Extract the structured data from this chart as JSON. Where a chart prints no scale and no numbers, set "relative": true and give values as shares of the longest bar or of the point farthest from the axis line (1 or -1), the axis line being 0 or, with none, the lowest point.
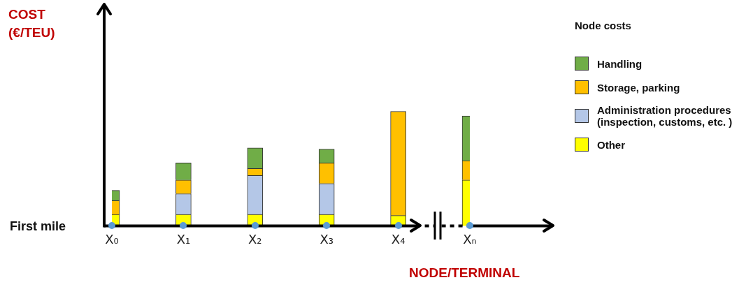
{
  "chart_data": {
    "type": "bar",
    "stacked": true,
    "relative": true,
    "xlabel": "NODE/TERMINAL",
    "legend_title": "Node costs",
    "legend": "right",
    "grid": false,
    "annotations": [
      "COST (€/TEU)",
      "First mile"
    ],
    "categories": [
      "X₀",
      "X₁",
      "X₂",
      "X₃",
      "X₄",
      "Xₙ"
    ],
    "series": [
      {
        "name": "Other",
        "color": "#ffff00",
        "values": [
          0.1,
          0.1,
          0.1,
          0.1,
          0.09,
          0.4
        ]
      },
      {
        "name": "Administration procedures (inspection, customs, etc. )",
        "color": "#b4c7e7",
        "values": [
          null,
          0.18,
          0.34,
          0.27,
          null,
          null
        ]
      },
      {
        "name": "Storage, parking",
        "color": "#ffc000",
        "values": [
          0.12,
          0.12,
          0.06,
          0.18,
          0.91,
          0.17
        ]
      },
      {
        "name": "Handling",
        "color": "#70ad47",
        "values": [
          0.09,
          0.15,
          0.18,
          0.12,
          null,
          0.39
        ]
      }
    ]
  }
}
